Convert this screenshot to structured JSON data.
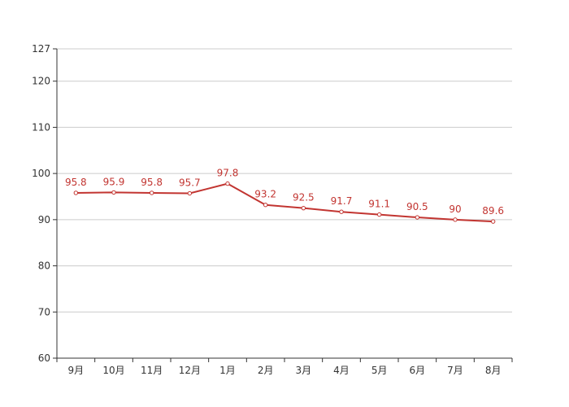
{
  "chart_data": {
    "type": "line",
    "title": "",
    "xlabel": "",
    "ylabel": "",
    "categories": [
      "9月",
      "10月",
      "11月",
      "12月",
      "1月",
      "2月",
      "3月",
      "4月",
      "5月",
      "6月",
      "7月",
      "8月"
    ],
    "series": [
      {
        "values": [
          95.8,
          95.9,
          95.8,
          95.7,
          97.8,
          93.2,
          92.5,
          91.7,
          91.1,
          90.5,
          90,
          89.6
        ],
        "data_labels": [
          "95.8",
          "95.9",
          "95.8",
          "95.7",
          "97.8",
          "93.2",
          "92.5",
          "91.7",
          "91.1",
          "90.5",
          "90",
          "89.6"
        ],
        "color": "#c23531",
        "marker": "hollow-circle"
      }
    ],
    "ylim": [
      60,
      127
    ],
    "yticks": [
      60,
      70,
      80,
      90,
      100,
      110,
      120,
      127
    ],
    "ytick_labels": [
      "60",
      "70",
      "80",
      "90",
      "100",
      "110",
      "120",
      "127"
    ],
    "grid": true,
    "legend": "none",
    "colors": {
      "line": "#c23531",
      "grid": "#cccccc",
      "axis": "#333333",
      "tick_text": "#333333",
      "label_text": "#c23531"
    }
  }
}
